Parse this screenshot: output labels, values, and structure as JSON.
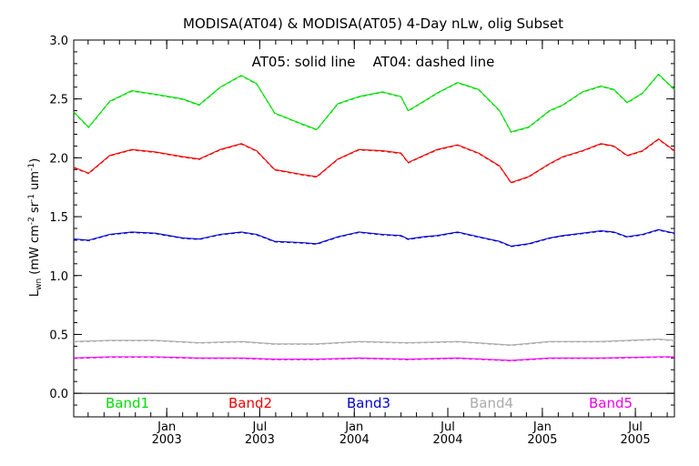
{
  "chart_data": {
    "type": "line",
    "title": "MODISA(AT04) & MODISA(AT05) 4-Day nLw, olig Subset",
    "annotation": "AT05: solid line    AT04: dashed line",
    "ylabel": "L_wn (mW cm^-2 sr^-1 um^-1)",
    "ylabel_main": "L",
    "ylabel_sub": "wn",
    "ylabel_rest_1": " (mW cm",
    "ylabel_sup_1": "-2",
    "ylabel_rest_2": " sr",
    "ylabel_sup_2": "-1",
    "ylabel_rest_3": " um",
    "ylabel_sup_3": "-1",
    "ylabel_rest_4": ")",
    "ylim": [
      -0.2,
      3.0
    ],
    "xlim": [
      "2002-07-04",
      "2005-09-15"
    ],
    "yticks": [
      "0.0",
      "0.5",
      "1.0",
      "1.5",
      "2.0",
      "2.5",
      "3.0"
    ],
    "xticks": [
      {
        "month": "Jan",
        "year": "2003",
        "date": "2003-01-01"
      },
      {
        "month": "Jul",
        "year": "2003",
        "date": "2003-07-01"
      },
      {
        "month": "Jan",
        "year": "2004",
        "date": "2004-01-01"
      },
      {
        "month": "Jul",
        "year": "2004",
        "date": "2004-07-01"
      },
      {
        "month": "Jan",
        "year": "2005",
        "date": "2005-01-01"
      },
      {
        "month": "Jul",
        "year": "2005",
        "date": "2005-07-01"
      }
    ],
    "legend": [
      {
        "name": "Band1",
        "color": "#00dd00"
      },
      {
        "name": "Band2",
        "color": "#ee0000"
      },
      {
        "name": "Band3",
        "color": "#0000cc"
      },
      {
        "name": "Band4",
        "color": "#aaaaaa"
      },
      {
        "name": "Band5",
        "color": "#ee00ee"
      }
    ],
    "series": [
      {
        "name": "Band1",
        "color": "#00dd00",
        "points": [
          [
            "2002-07-04",
            2.39
          ],
          [
            "2002-08-02",
            2.26
          ],
          [
            "2002-09-12",
            2.48
          ],
          [
            "2002-10-25",
            2.57
          ],
          [
            "2002-12-10",
            2.54
          ],
          [
            "2003-02-01",
            2.5
          ],
          [
            "2003-03-05",
            2.45
          ],
          [
            "2003-04-15",
            2.6
          ],
          [
            "2003-05-26",
            2.7
          ],
          [
            "2003-06-25",
            2.63
          ],
          [
            "2003-07-30",
            2.38
          ],
          [
            "2003-09-20",
            2.29
          ],
          [
            "2003-10-20",
            2.24
          ],
          [
            "2003-11-30",
            2.46
          ],
          [
            "2004-01-10",
            2.52
          ],
          [
            "2004-02-25",
            2.56
          ],
          [
            "2004-04-01",
            2.52
          ],
          [
            "2004-04-15",
            2.4
          ],
          [
            "2004-05-15",
            2.48
          ],
          [
            "2004-06-10",
            2.55
          ],
          [
            "2004-07-20",
            2.64
          ],
          [
            "2004-08-30",
            2.58
          ],
          [
            "2004-10-10",
            2.4
          ],
          [
            "2004-11-01",
            2.22
          ],
          [
            "2004-12-05",
            2.26
          ],
          [
            "2005-01-15",
            2.4
          ],
          [
            "2005-02-10",
            2.45
          ],
          [
            "2005-03-20",
            2.56
          ],
          [
            "2005-04-25",
            2.61
          ],
          [
            "2005-05-20",
            2.58
          ],
          [
            "2005-06-15",
            2.47
          ],
          [
            "2005-07-15",
            2.55
          ],
          [
            "2005-08-15",
            2.71
          ],
          [
            "2005-09-15",
            2.58
          ]
        ]
      },
      {
        "name": "Band2",
        "color": "#ee0000",
        "points": [
          [
            "2002-07-04",
            1.92
          ],
          [
            "2002-08-02",
            1.87
          ],
          [
            "2002-09-12",
            2.02
          ],
          [
            "2002-10-25",
            2.07
          ],
          [
            "2002-12-10",
            2.05
          ],
          [
            "2003-02-01",
            2.01
          ],
          [
            "2003-03-05",
            1.99
          ],
          [
            "2003-04-15",
            2.07
          ],
          [
            "2003-05-26",
            2.12
          ],
          [
            "2003-06-25",
            2.06
          ],
          [
            "2003-07-30",
            1.9
          ],
          [
            "2003-09-20",
            1.86
          ],
          [
            "2003-10-20",
            1.84
          ],
          [
            "2003-11-30",
            1.99
          ],
          [
            "2004-01-10",
            2.07
          ],
          [
            "2004-02-25",
            2.06
          ],
          [
            "2004-04-01",
            2.04
          ],
          [
            "2004-04-15",
            1.96
          ],
          [
            "2004-05-15",
            2.02
          ],
          [
            "2004-06-10",
            2.07
          ],
          [
            "2004-07-20",
            2.11
          ],
          [
            "2004-08-30",
            2.04
          ],
          [
            "2004-10-10",
            1.93
          ],
          [
            "2004-11-01",
            1.79
          ],
          [
            "2004-12-05",
            1.84
          ],
          [
            "2005-01-15",
            1.95
          ],
          [
            "2005-02-10",
            2.01
          ],
          [
            "2005-03-20",
            2.06
          ],
          [
            "2005-04-25",
            2.12
          ],
          [
            "2005-05-20",
            2.1
          ],
          [
            "2005-06-15",
            2.02
          ],
          [
            "2005-07-15",
            2.06
          ],
          [
            "2005-08-15",
            2.16
          ],
          [
            "2005-09-15",
            2.06
          ]
        ]
      },
      {
        "name": "Band3",
        "color": "#0000cc",
        "points": [
          [
            "2002-07-04",
            1.31
          ],
          [
            "2002-08-02",
            1.3
          ],
          [
            "2002-09-12",
            1.35
          ],
          [
            "2002-10-25",
            1.37
          ],
          [
            "2002-12-10",
            1.36
          ],
          [
            "2003-02-01",
            1.32
          ],
          [
            "2003-03-05",
            1.31
          ],
          [
            "2003-04-15",
            1.35
          ],
          [
            "2003-05-26",
            1.37
          ],
          [
            "2003-06-25",
            1.35
          ],
          [
            "2003-07-30",
            1.29
          ],
          [
            "2003-09-20",
            1.28
          ],
          [
            "2003-10-20",
            1.27
          ],
          [
            "2003-11-30",
            1.33
          ],
          [
            "2004-01-10",
            1.37
          ],
          [
            "2004-02-25",
            1.35
          ],
          [
            "2004-04-01",
            1.34
          ],
          [
            "2004-04-15",
            1.31
          ],
          [
            "2004-05-15",
            1.33
          ],
          [
            "2004-06-10",
            1.34
          ],
          [
            "2004-07-20",
            1.37
          ],
          [
            "2004-08-30",
            1.33
          ],
          [
            "2004-10-10",
            1.29
          ],
          [
            "2004-11-01",
            1.25
          ],
          [
            "2004-12-05",
            1.27
          ],
          [
            "2005-01-15",
            1.32
          ],
          [
            "2005-02-10",
            1.34
          ],
          [
            "2005-03-20",
            1.36
          ],
          [
            "2005-04-25",
            1.38
          ],
          [
            "2005-05-20",
            1.37
          ],
          [
            "2005-06-15",
            1.33
          ],
          [
            "2005-07-15",
            1.35
          ],
          [
            "2005-08-15",
            1.39
          ],
          [
            "2005-09-15",
            1.36
          ]
        ]
      },
      {
        "name": "Band4",
        "color": "#aaaaaa",
        "points": [
          [
            "2002-07-04",
            0.44
          ],
          [
            "2002-09-12",
            0.45
          ],
          [
            "2002-12-10",
            0.45
          ],
          [
            "2003-03-05",
            0.43
          ],
          [
            "2003-05-26",
            0.44
          ],
          [
            "2003-07-30",
            0.42
          ],
          [
            "2003-10-20",
            0.42
          ],
          [
            "2004-01-10",
            0.44
          ],
          [
            "2004-04-15",
            0.43
          ],
          [
            "2004-07-20",
            0.44
          ],
          [
            "2004-11-01",
            0.41
          ],
          [
            "2005-01-15",
            0.44
          ],
          [
            "2005-04-25",
            0.44
          ],
          [
            "2005-08-15",
            0.46
          ],
          [
            "2005-09-15",
            0.45
          ]
        ]
      },
      {
        "name": "Band5",
        "color": "#ee00ee",
        "points": [
          [
            "2002-07-04",
            0.3
          ],
          [
            "2002-09-12",
            0.31
          ],
          [
            "2002-12-10",
            0.31
          ],
          [
            "2003-03-05",
            0.3
          ],
          [
            "2003-05-26",
            0.3
          ],
          [
            "2003-07-30",
            0.29
          ],
          [
            "2003-10-20",
            0.29
          ],
          [
            "2004-01-10",
            0.3
          ],
          [
            "2004-04-15",
            0.29
          ],
          [
            "2004-07-20",
            0.3
          ],
          [
            "2004-11-01",
            0.28
          ],
          [
            "2005-01-15",
            0.3
          ],
          [
            "2005-04-25",
            0.3
          ],
          [
            "2005-08-15",
            0.31
          ],
          [
            "2005-09-15",
            0.31
          ]
        ]
      }
    ],
    "grid": false,
    "legend_position": "bottom inside plot"
  }
}
